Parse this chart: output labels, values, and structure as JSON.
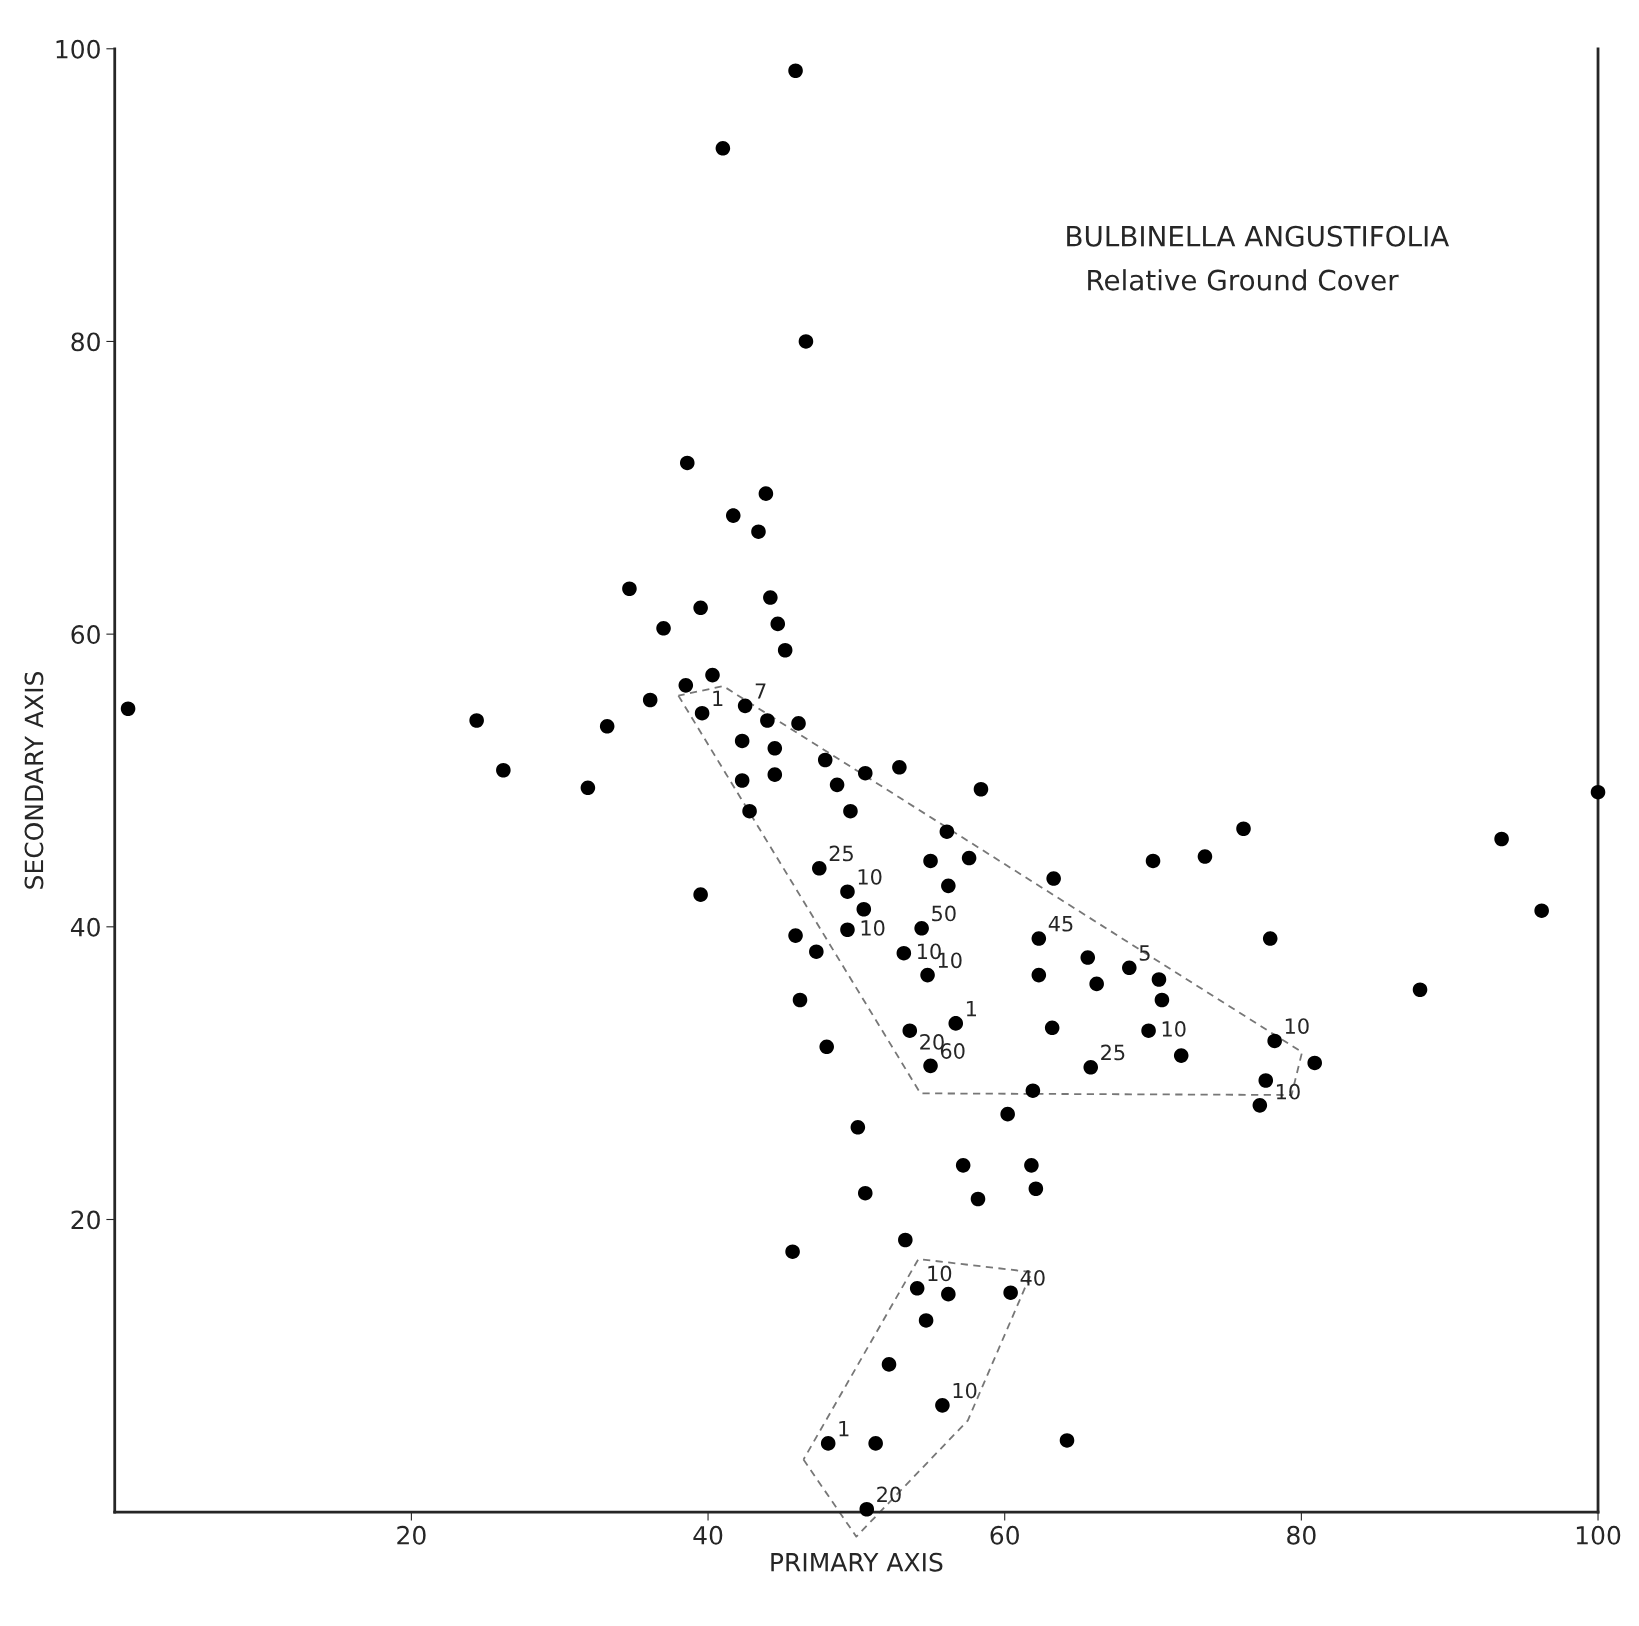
{
  "chart_data": {
    "type": "scatter",
    "title": "BULBINELLA ANGUSTIFOLIA",
    "subtitle": "Relative Ground Cover",
    "xlabel": "PRIMARY AXIS",
    "ylabel": "SECONDARY AXIS",
    "xlim": [
      0,
      100
    ],
    "ylim": [
      0,
      100
    ],
    "xticks": [
      20,
      40,
      60,
      80,
      100
    ],
    "yticks": [
      20,
      40,
      60,
      80,
      100
    ],
    "grid": false,
    "marker": "circle",
    "series": [
      {
        "color": "#000000",
        "x": [
          45.9,
          41.0,
          46.6,
          38.6,
          43.9,
          41.7,
          43.4,
          34.7,
          44.2,
          39.5,
          44.7,
          37.0,
          45.2,
          40.3,
          38.5,
          36.1,
          0.9,
          42.5,
          39.6,
          24.4,
          44.0,
          46.1,
          33.2,
          42.3,
          44.5,
          47.9,
          26.2,
          52.9,
          50.6,
          42.3,
          44.5,
          48.7,
          31.9,
          58.4,
          100.0,
          42.8,
          49.6,
          56.1,
          76.1,
          93.5,
          55.0,
          57.6,
          73.5,
          70.0,
          47.5,
          63.3,
          56.2,
          49.4,
          39.5,
          50.5,
          96.2,
          54.4,
          49.4,
          45.9,
          62.3,
          77.9,
          47.3,
          53.2,
          65.6,
          68.4,
          54.8,
          62.3,
          70.4,
          66.2,
          88.0,
          46.2,
          70.6,
          56.7,
          53.6,
          63.2,
          69.7,
          78.2,
          48.0,
          71.9,
          80.9,
          55.0,
          65.8,
          77.6,
          61.9,
          77.2,
          60.2,
          50.1,
          57.2,
          61.8,
          62.1,
          50.6,
          58.2,
          53.3,
          45.7,
          54.1,
          56.2,
          60.4,
          54.7,
          52.2,
          55.8,
          48.1,
          51.3,
          64.2,
          50.7
        ],
        "values": [
          98.5,
          93.2,
          80.0,
          71.7,
          69.6,
          68.1,
          67.0,
          63.1,
          62.5,
          61.8,
          60.7,
          60.4,
          58.9,
          57.2,
          56.5,
          55.5,
          54.9,
          55.1,
          54.6,
          54.1,
          54.1,
          53.9,
          53.7,
          52.7,
          52.2,
          51.4,
          50.7,
          50.9,
          50.5,
          50.0,
          50.4,
          49.7,
          49.5,
          49.4,
          49.2,
          47.9,
          47.9,
          46.5,
          46.7,
          46.0,
          44.5,
          44.7,
          44.8,
          44.5,
          44.0,
          43.3,
          42.8,
          42.4,
          42.2,
          41.2,
          41.1,
          39.9,
          39.8,
          39.4,
          39.2,
          39.2,
          38.3,
          38.2,
          37.9,
          37.2,
          36.7,
          36.7,
          36.4,
          36.1,
          35.7,
          35.0,
          35.0,
          33.4,
          32.9,
          33.1,
          32.9,
          32.2,
          31.8,
          31.2,
          30.7,
          30.5,
          30.4,
          29.5,
          28.8,
          27.8,
          27.2,
          26.3,
          23.7,
          23.7,
          22.1,
          21.8,
          21.4,
          18.6,
          17.8,
          15.3,
          14.9,
          15.0,
          13.1,
          10.1,
          7.3,
          4.7,
          4.7,
          4.9,
          0.2
        ]
      }
    ],
    "annotations": [
      {
        "text": "7",
        "x": 42.5,
        "y": 55.1
      },
      {
        "text": "1",
        "x": 39.6,
        "y": 54.6
      },
      {
        "text": "25",
        "x": 47.5,
        "y": 44.0
      },
      {
        "text": "10",
        "x": 49.4,
        "y": 42.4
      },
      {
        "text": "10",
        "x": 49.4,
        "y": 39.8
      },
      {
        "text": "50",
        "x": 54.4,
        "y": 39.9
      },
      {
        "text": "10",
        "x": 53.2,
        "y": 38.2
      },
      {
        "text": "10",
        "x": 54.8,
        "y": 36.7
      },
      {
        "text": "45",
        "x": 62.3,
        "y": 39.2
      },
      {
        "text": "5",
        "x": 68.4,
        "y": 37.2
      },
      {
        "text": "20",
        "x": 53.6,
        "y": 32.9
      },
      {
        "text": "1",
        "x": 56.7,
        "y": 33.4
      },
      {
        "text": "10",
        "x": 69.7,
        "y": 32.9
      },
      {
        "text": "10",
        "x": 78.2,
        "y": 32.2
      },
      {
        "text": "10",
        "x": 77.6,
        "y": 29.5
      },
      {
        "text": "60",
        "x": 55.0,
        "y": 30.5
      },
      {
        "text": "25",
        "x": 65.8,
        "y": 30.4
      },
      {
        "text": "10",
        "x": 54.1,
        "y": 15.3
      },
      {
        "text": "40",
        "x": 60.4,
        "y": 15.0
      },
      {
        "text": "10",
        "x": 55.8,
        "y": 7.3
      },
      {
        "text": "1",
        "x": 48.1,
        "y": 4.7
      },
      {
        "text": "20",
        "x": 50.7,
        "y": 0.2
      }
    ]
  }
}
